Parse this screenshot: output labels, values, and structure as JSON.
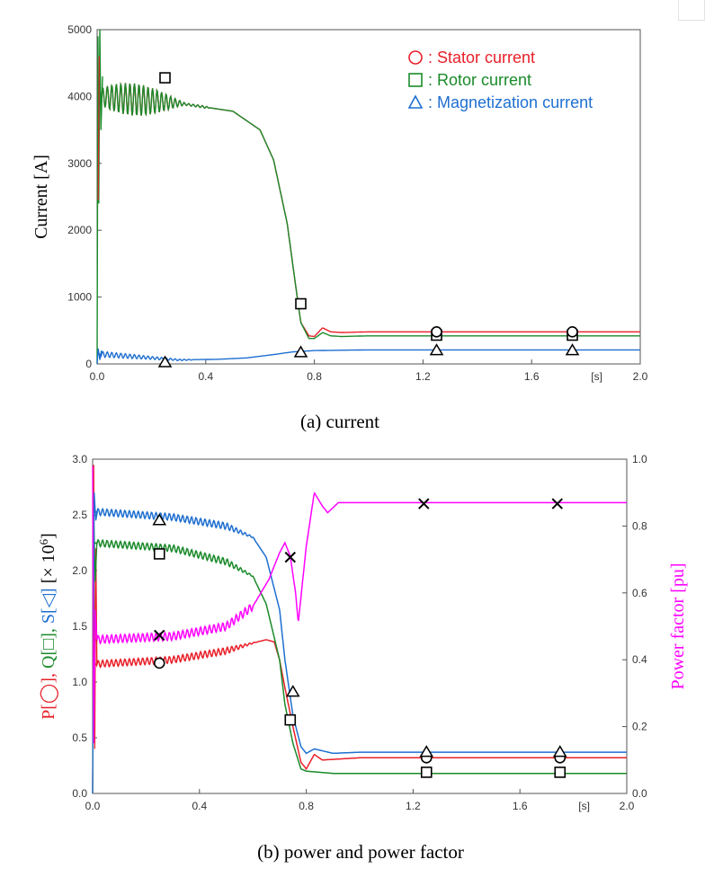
{
  "chart_data": [
    {
      "type": "line",
      "ylabel": "Current [A]",
      "xunit": "[s]",
      "xlim": [
        0,
        2.0
      ],
      "ylim": [
        0,
        5000
      ],
      "xticks": [
        "0.0",
        "0.4",
        "0.8",
        "1.2",
        "1.6",
        "2.0"
      ],
      "yticks": [
        "0",
        "1000",
        "2000",
        "3000",
        "4000",
        "5000"
      ],
      "caption": "(a)  current",
      "legend_position": "top-right",
      "legend": [
        {
          "marker": "○",
          "label": ": Stator current",
          "color": "#e8202a"
        },
        {
          "marker": "□",
          "label": ": Rotor current",
          "color": "#1a8a2a"
        },
        {
          "marker": "△",
          "label": ": Magnetization current",
          "color": "#1e6fd0"
        }
      ],
      "series": [
        {
          "name": "Stator current",
          "color": "#e8202a",
          "x": [
            0,
            0.3,
            0.5,
            0.6,
            0.65,
            0.7,
            0.73,
            0.75,
            0.78,
            0.8,
            0.83,
            0.86,
            0.9,
            1.0,
            2.0
          ],
          "y": [
            4000,
            3900,
            3780,
            3500,
            3050,
            2100,
            1200,
            620,
            420,
            410,
            540,
            480,
            470,
            480,
            480
          ]
        },
        {
          "name": "Rotor current",
          "color": "#1a8a2a",
          "x": [
            0,
            0.3,
            0.5,
            0.6,
            0.65,
            0.7,
            0.73,
            0.75,
            0.78,
            0.8,
            0.83,
            0.86,
            0.9,
            1.0,
            2.0
          ],
          "y": [
            4000,
            3900,
            3780,
            3500,
            3050,
            2100,
            1200,
            620,
            380,
            380,
            470,
            420,
            410,
            420,
            420
          ]
        },
        {
          "name": "Magnetization current",
          "color": "#1e6fd0",
          "x": [
            0,
            0.2,
            0.3,
            0.45,
            0.55,
            0.65,
            0.72,
            0.8,
            1.0,
            2.0
          ],
          "y": [
            150,
            90,
            60,
            70,
            90,
            140,
            180,
            200,
            210,
            210
          ]
        }
      ],
      "markers": [
        {
          "shape": "square",
          "x": 0.25,
          "y": 4280
        },
        {
          "shape": "square",
          "x": 0.75,
          "y": 900
        },
        {
          "shape": "square",
          "x": 1.25,
          "y": 430
        },
        {
          "shape": "square",
          "x": 1.75,
          "y": 430
        },
        {
          "shape": "circle",
          "x": 1.25,
          "y": 480
        },
        {
          "shape": "circle",
          "x": 1.75,
          "y": 480
        },
        {
          "shape": "triangle",
          "x": 0.25,
          "y": 20
        },
        {
          "shape": "triangle",
          "x": 0.75,
          "y": 170
        },
        {
          "shape": "triangle",
          "x": 1.25,
          "y": 200
        },
        {
          "shape": "triangle",
          "x": 1.75,
          "y": 200
        }
      ]
    },
    {
      "type": "line",
      "ylabel_parts": [
        {
          "text": "P[",
          "color": "#e8202a"
        },
        {
          "text": "◯",
          "color": "#e8202a"
        },
        {
          "text": "], ",
          "color": "#e8202a"
        },
        {
          "text": "Q[",
          "color": "#1a8a2a"
        },
        {
          "text": "□",
          "color": "#1a8a2a"
        },
        {
          "text": "], ",
          "color": "#1a8a2a"
        },
        {
          "text": "S[",
          "color": "#1e6fd0"
        },
        {
          "text": "◁",
          "color": "#1e6fd0"
        },
        {
          "text": "] ",
          "color": "#1e6fd0"
        },
        {
          "text": "[× 10",
          "color": "#000000"
        },
        {
          "text": "6",
          "color": "#000000",
          "sup": true
        },
        {
          "text": "]",
          "color": "#000000"
        }
      ],
      "y2label": "Power factor [pu]",
      "xunit": "[s]",
      "xlim": [
        0,
        2.0
      ],
      "ylim": [
        0,
        3.0
      ],
      "y2lim": [
        0,
        1.0
      ],
      "xticks": [
        "0.0",
        "0.4",
        "0.8",
        "1.2",
        "1.6",
        "2.0"
      ],
      "yticks": [
        "0.0",
        "0.5",
        "1.0",
        "1.5",
        "2.0",
        "2.5",
        "3.0"
      ],
      "y2ticks": [
        "0.0",
        "0.2",
        "0.4",
        "0.6",
        "0.8",
        "1.0"
      ],
      "caption": "(b)  power  and  power  factor",
      "series": [
        {
          "name": "P",
          "color": "#e8202a",
          "x": [
            0,
            0.3,
            0.5,
            0.6,
            0.65,
            0.68,
            0.7,
            0.72,
            0.75,
            0.78,
            0.8,
            0.83,
            0.86,
            1.0,
            2.0
          ],
          "y": [
            1.16,
            1.2,
            1.28,
            1.35,
            1.38,
            1.36,
            1.2,
            0.95,
            0.6,
            0.28,
            0.22,
            0.35,
            0.3,
            0.32,
            0.32
          ]
        },
        {
          "name": "Q",
          "color": "#1a8a2a",
          "x": [
            0,
            0.3,
            0.5,
            0.6,
            0.65,
            0.7,
            0.72,
            0.75,
            0.78,
            0.8,
            0.9,
            2.0
          ],
          "y": [
            2.25,
            2.2,
            2.08,
            1.95,
            1.7,
            1.2,
            0.8,
            0.45,
            0.22,
            0.2,
            0.18,
            0.18
          ]
        },
        {
          "name": "S",
          "color": "#1e6fd0",
          "x": [
            0,
            0.3,
            0.5,
            0.6,
            0.65,
            0.7,
            0.72,
            0.75,
            0.78,
            0.8,
            0.83,
            0.9,
            1.0,
            2.0
          ],
          "y": [
            2.53,
            2.48,
            2.4,
            2.3,
            2.12,
            1.65,
            1.2,
            0.7,
            0.42,
            0.36,
            0.4,
            0.36,
            0.37,
            0.37
          ]
        },
        {
          "name": "Power factor",
          "color": "#ff00ff",
          "axis": "right",
          "x": [
            0,
            0.3,
            0.5,
            0.6,
            0.66,
            0.7,
            0.72,
            0.74,
            0.76,
            0.77,
            0.8,
            0.83,
            0.86,
            0.88,
            0.92,
            1.0,
            2.0
          ],
          "y": [
            0.46,
            0.47,
            0.5,
            0.56,
            0.64,
            0.72,
            0.75,
            0.71,
            0.6,
            0.51,
            0.74,
            0.9,
            0.86,
            0.84,
            0.87,
            0.87,
            0.87
          ]
        }
      ],
      "markers": [
        {
          "shape": "circle",
          "x": 0.25,
          "y": 1.17
        },
        {
          "shape": "circle",
          "x": 1.25,
          "y": 0.32
        },
        {
          "shape": "circle",
          "x": 1.75,
          "y": 0.32
        },
        {
          "shape": "square",
          "x": 0.25,
          "y": 2.15
        },
        {
          "shape": "square",
          "x": 0.74,
          "y": 0.66
        },
        {
          "shape": "square",
          "x": 1.25,
          "y": 0.19
        },
        {
          "shape": "square",
          "x": 1.75,
          "y": 0.19
        },
        {
          "shape": "triangle",
          "x": 0.25,
          "y": 2.45
        },
        {
          "shape": "triangle",
          "x": 0.75,
          "y": 0.91
        },
        {
          "shape": "triangle",
          "x": 1.25,
          "y": 0.37
        },
        {
          "shape": "triangle",
          "x": 1.75,
          "y": 0.37
        },
        {
          "shape": "cross",
          "x": 0.25,
          "y": 1.42
        },
        {
          "shape": "cross",
          "x": 0.74,
          "y": 2.12
        },
        {
          "shape": "cross",
          "x": 1.24,
          "y": 2.6
        },
        {
          "shape": "cross",
          "x": 1.74,
          "y": 2.6
        }
      ]
    }
  ]
}
